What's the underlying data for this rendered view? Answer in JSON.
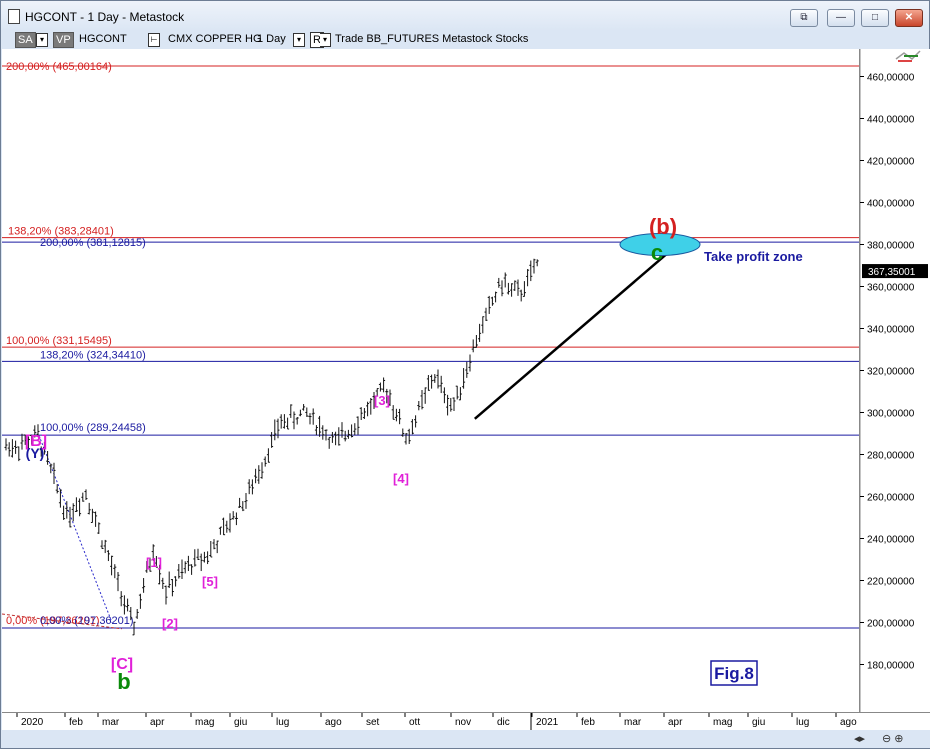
{
  "window": {
    "title": "HGCONT - 1 Day - Metastock",
    "buttons": {
      "restore": "⧉",
      "minimize": "—",
      "maximize": "□",
      "close": "✕"
    }
  },
  "toolbar": {
    "sa_label": "SA",
    "vp_label": "VP",
    "symbol": "HGCONT",
    "security_name": "CMX COPPER HG",
    "periodicity": "1 Day",
    "r_label": "R",
    "details": "Trade  BB_FUTURES  Metastock  Stocks"
  },
  "price_axis": {
    "ticks": [
      "460,00000",
      "440,00000",
      "420,00000",
      "400,00000",
      "380,00000",
      "360,00000",
      "340,00000",
      "320,00000",
      "300,00000",
      "280,00000",
      "260,00000",
      "240,00000",
      "220,00000",
      "200,00000",
      "180,00000"
    ],
    "current_price": "367,35001"
  },
  "date_axis": {
    "labels": [
      "2020",
      "feb",
      "mar",
      "apr",
      "mag",
      "giu",
      "lug",
      "ago",
      "set",
      "ott",
      "nov",
      "dic",
      "2021",
      "feb",
      "mar",
      "apr",
      "mag",
      "giu",
      "lug",
      "ago"
    ]
  },
  "levels": {
    "red_200": "200,00% (465,00164)",
    "red_138": "138,20% (383,28401)",
    "blue_200": "200,00% (381,12815)",
    "red_100": "100,00% (331,15495)",
    "blue_138": "138,20% (324,34410)",
    "blue_100": "100,00% (289,24458)",
    "red_0": "0,00% (197,36201)",
    "blue_0": "0,00% (197,36201)"
  },
  "annotations": {
    "wave_b_red": "(b)",
    "wave_c_green": "c",
    "take_profit": "Take profit zone",
    "B_magenta": "[B]",
    "Y_blue": "(Y)",
    "C_magenta": "[C]",
    "b_green": "b",
    "w1": "[1]",
    "w2": "[2]",
    "w3": "[3]",
    "w4": "[4]",
    "w5": "[5]",
    "fig": "Fig.8"
  },
  "colors": {
    "red_level": "#d42020",
    "blue_level": "#1a1aa0",
    "magenta": "#e020d8",
    "green": "#0a8a0a",
    "target_ellipse": "#3fd0e8"
  },
  "chart_data": {
    "type": "bar",
    "title": "HGCONT - 1 Day",
    "x_range": [
      "2020-01",
      "2021-08"
    ],
    "ylim": [
      175,
      470
    ],
    "key_points": [
      {
        "date": "2020-01-02",
        "price": 284
      },
      {
        "date": "2020-01-14",
        "price": 289
      },
      {
        "date": "2020-02-03",
        "price": 251
      },
      {
        "date": "2020-02-20",
        "price": 262
      },
      {
        "date": "2020-03-23",
        "price": 197
      },
      {
        "date": "2020-04-06",
        "price": 236
      },
      {
        "date": "2020-04-14",
        "price": 215
      },
      {
        "date": "2020-05-01",
        "price": 228
      },
      {
        "date": "2020-05-15",
        "price": 233
      },
      {
        "date": "2020-06-15",
        "price": 262
      },
      {
        "date": "2020-07-06",
        "price": 295
      },
      {
        "date": "2020-07-22",
        "price": 300
      },
      {
        "date": "2020-08-12",
        "price": 285
      },
      {
        "date": "2020-09-18",
        "price": 312
      },
      {
        "date": "2020-10-02",
        "price": 287
      },
      {
        "date": "2020-10-20",
        "price": 318
      },
      {
        "date": "2020-11-02",
        "price": 302
      },
      {
        "date": "2020-11-20",
        "price": 336
      },
      {
        "date": "2020-12-07",
        "price": 362
      },
      {
        "date": "2020-12-21",
        "price": 356
      },
      {
        "date": "2021-01-06",
        "price": 372
      }
    ],
    "levels": [
      465.00164,
      383.28401,
      381.12815,
      331.15495,
      324.3441,
      289.24458,
      197.36201
    ],
    "projection_line": {
      "from": {
        "date": "2020-11-18",
        "price": 297
      },
      "to": {
        "date": "2021-04-15",
        "price": 383
      }
    }
  }
}
